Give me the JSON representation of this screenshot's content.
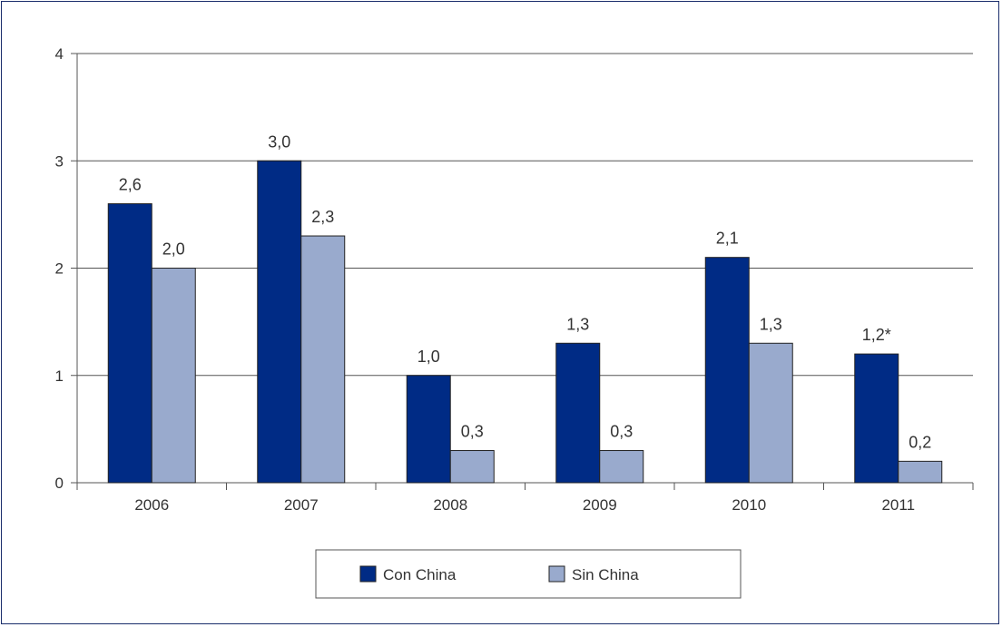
{
  "chart_data": {
    "type": "bar",
    "categories": [
      "2006",
      "2007",
      "2008",
      "2009",
      "2010",
      "2011"
    ],
    "series": [
      {
        "name": "Con China",
        "color": "#002b85",
        "values": [
          2.6,
          3.0,
          1.0,
          1.3,
          2.1,
          1.2
        ],
        "labels": [
          "2,6",
          "3,0",
          "1,0",
          "1,3",
          "2,1",
          "1,2*"
        ]
      },
      {
        "name": "Sin China",
        "color": "#99aacd",
        "values": [
          2.0,
          2.3,
          0.3,
          0.3,
          1.3,
          0.2
        ],
        "labels": [
          "2,0",
          "2,3",
          "0,3",
          "0,3",
          "1,3",
          "0,2"
        ]
      }
    ],
    "ylim": [
      0,
      4
    ],
    "yticks": [
      "0",
      "1",
      "2",
      "3",
      "4"
    ],
    "grid": true,
    "legend_position": "bottom-center"
  }
}
